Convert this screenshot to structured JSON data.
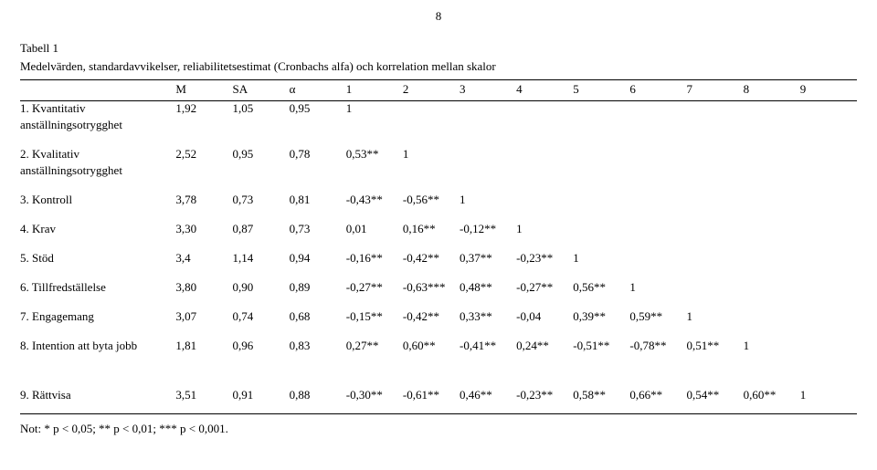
{
  "page_number": "8",
  "table_label": "Tabell 1",
  "table_caption": "Medelvärden, standardavvikelser, reliabilitetsestimat (Cronbachs alfa) och korrelation mellan skalor",
  "columns": [
    "",
    "M",
    "SA",
    "α",
    "1",
    "2",
    "3",
    "4",
    "5",
    "6",
    "7",
    "8",
    "9"
  ],
  "rows": [
    {
      "label_lines": [
        "1. Kvantitativ",
        "anställningsotrygghet"
      ],
      "cells": [
        "1,92",
        "1,05",
        "0,95",
        "1",
        "",
        "",
        "",
        "",
        "",
        "",
        "",
        ""
      ]
    },
    {
      "label_lines": [
        "2. Kvalitativ",
        "anställningsotrygghet"
      ],
      "cells": [
        "2,52",
        "0,95",
        "0,78",
        "0,53**",
        "1",
        "",
        "",
        "",
        "",
        "",
        "",
        ""
      ]
    },
    {
      "label_lines": [
        "3. Kontroll"
      ],
      "cells": [
        "3,78",
        "0,73",
        "0,81",
        "-0,43**",
        "-0,56**",
        "1",
        "",
        "",
        "",
        "",
        "",
        ""
      ]
    },
    {
      "label_lines": [
        "4. Krav"
      ],
      "cells": [
        "3,30",
        "0,87",
        "0,73",
        "0,01",
        "0,16**",
        "-0,12**",
        "1",
        "",
        "",
        "",
        "",
        ""
      ]
    },
    {
      "label_lines": [
        "5. Stöd"
      ],
      "cells": [
        "3,4",
        "1,14",
        "0,94",
        "-0,16**",
        "-0,42**",
        "0,37**",
        "-0,23**",
        "1",
        "",
        "",
        "",
        ""
      ]
    },
    {
      "label_lines": [
        "6. Tillfredställelse"
      ],
      "cells": [
        "3,80",
        "0,90",
        "0,89",
        "-0,27**",
        "-0,63***",
        "0,48**",
        "-0,27**",
        "0,56**",
        "1",
        "",
        "",
        ""
      ]
    },
    {
      "label_lines": [
        "7. Engagemang"
      ],
      "cells": [
        "3,07",
        "0,74",
        "0,68",
        "-0,15**",
        "-0,42**",
        "0,33**",
        "-0,04",
        "0,39**",
        "0,59**",
        "1",
        "",
        ""
      ]
    },
    {
      "label_lines": [
        "8. Intention att byta jobb"
      ],
      "cells": [
        "1,81",
        "0,96",
        "0,83",
        "0,27**",
        "0,60**",
        "-0,41**",
        "0,24**",
        "-0,51**",
        "-0,78**",
        "0,51**",
        "1",
        ""
      ]
    },
    {
      "label_lines": [
        "9. Rättvisa"
      ],
      "cells": [
        "3,51",
        "0,91",
        "0,88",
        "-0,30**",
        "-0,61**",
        "0,46**",
        "-0,23**",
        "0,58**",
        "0,66**",
        "0,54**",
        "0,60**",
        "1"
      ],
      "extra_gap_before": true,
      "is_last": true
    }
  ],
  "note": "Not: * p < 0,05; ** p < 0,01; *** p < 0,001."
}
